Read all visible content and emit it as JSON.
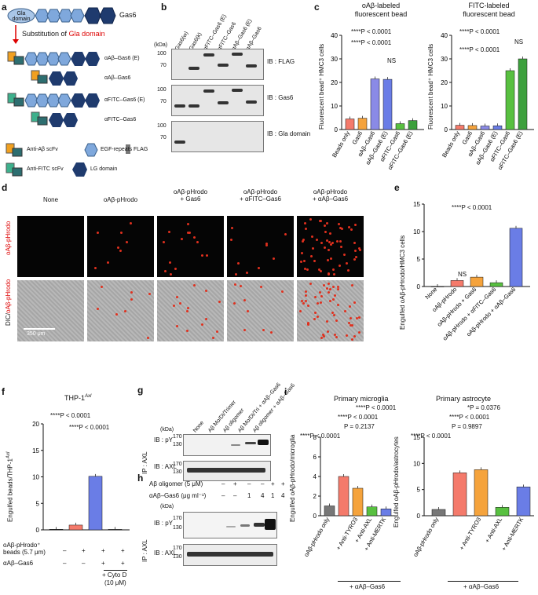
{
  "panels": {
    "a": {
      "label": "a",
      "gla_domain": "Gla domain",
      "gas6": "Gas6",
      "substitution_prefix": "Substitution of",
      "substitution_target": "Gla domain",
      "constructs": [
        "αAβ–Gas6 (E)",
        "αAβ–Gas6",
        "αFITC–Gas6 (E)",
        "αFITC–Gas6"
      ],
      "legend": {
        "anti_abeta": "Anti-Aβ scFv",
        "egf": "EGF-repeats",
        "flag": "FLAG",
        "anti_fitc": "Anti-FITC scFv",
        "lg": "LG domain"
      }
    },
    "b": {
      "label": "b",
      "lanes": [
        "Gas6(w)",
        "Gas6(k)",
        "αFITC–Gas6 (E)",
        "αFITC–Gas6",
        "αAβ–Gas6 (E)",
        "αAβ–Gas6"
      ],
      "kda": "(kDa)",
      "markers": [
        "100",
        "70"
      ],
      "ib": [
        "IB : FLAG",
        "IB : Gas6",
        "IB : Gla domain"
      ]
    },
    "c": {
      "label": "c",
      "ylabel": "Fluorescent bead⁺ HMC3 cells",
      "charts": [
        {
          "title1": "oAβ-labeled",
          "title2": "fluorescent bead",
          "stats": [
            "****P < 0.0001",
            "****P < 0.0001",
            "NS"
          ]
        },
        {
          "title1": "FITC-labeled",
          "title2": "fluorescent bead",
          "stats": [
            "****P < 0.0001",
            "****P < 0.0001",
            "NS"
          ]
        }
      ]
    },
    "d": {
      "label": "d",
      "columns": [
        "None",
        "oAβ-pHrodo",
        "oAβ-pHrodo\n+ Gas6",
        "oAβ-pHrodo\n+ αFITC–Gas6",
        "oAβ-pHrodo\n+ αAβ–Gas6"
      ],
      "row1": "oAβ-pHrodo",
      "row2_a": "DIC/",
      "row2_b": "oAβ-pHrodo",
      "scale": "350 μm"
    },
    "e": {
      "label": "e",
      "ylabel": "Engulfed oAβ-pHrodo/HMC3 cells",
      "stats": [
        "****P < 0.0001",
        "NS"
      ]
    },
    "f": {
      "label": "f",
      "title": "THP-1",
      "title_sup": "Axl",
      "ylabel": "Engulfed beads/THP-1",
      "ylabel_sup": "Axl",
      "stats": [
        "****P < 0.0001",
        "****P < 0.0001"
      ],
      "row1": "oAβ-pHrodo⁺ beads (5.7 μm)",
      "row2": "αAβ–Gas6",
      "row1_vals": [
        "–",
        "+",
        "+",
        "+"
      ],
      "row2_vals": [
        "–",
        "–",
        "+",
        "+"
      ],
      "cyto": "+ Cyto D",
      "cyto_conc": "(10 μM)"
    },
    "g": {
      "label": "g",
      "lanes": [
        "None",
        "Aβ Mo/Di/Trimer",
        "Aβ oligomer",
        "Aβ Mo/Di/Tri + αAβ–Gas6",
        "Aβ oligomer + αAβ–Gas6"
      ],
      "kda": "(kDa)",
      "markers_top": [
        "170",
        "130"
      ],
      "markers_bottom": [
        "170",
        "130"
      ],
      "ib_top": "IB : pY",
      "ib_bottom": "IB : AXL",
      "ip": "IP : AXL"
    },
    "h": {
      "label": "h",
      "row1_label": "Aβ oligomer (5 μM)",
      "row1_vals": [
        "–",
        "+",
        "–",
        "–",
        "+",
        "+"
      ],
      "row2_label": "αAβ–Gas6 (μg ml⁻¹)",
      "row2_vals": [
        "–",
        "–",
        "1",
        "4",
        "1",
        "4"
      ],
      "kda": "(kDa)",
      "markers_top": [
        "170",
        "130"
      ],
      "markers_bottom": [
        "170",
        "130"
      ],
      "ib_top": "IB : pY",
      "ib_bottom": "IB : AXL",
      "ip": "IP : AXL"
    },
    "i": {
      "label": "i",
      "charts": [
        {
          "title": "Primary microglia",
          "ylabel": "Engulfed oAβ-pHrodo/microglia",
          "stats": [
            "****P < 0.0001",
            "****P < 0.0001",
            "P = 0.2137",
            "****P < 0.0001"
          ]
        },
        {
          "title": "Primary astrocyte",
          "ylabel": "Engulfed oAβ-pHrodo/astrocytes",
          "stats": [
            "*P = 0.0376",
            "****P < 0.0001",
            "P = 0.9897",
            "****P < 0.0001"
          ]
        }
      ],
      "footer": "+ αAβ–Gas6"
    }
  },
  "chart_data": [
    {
      "type": "bar",
      "panel": "c-left",
      "title": "oAβ-labeled fluorescent bead",
      "categories": [
        "Beads only",
        "Gas6",
        "αAβ–Gas6",
        "αAβ–Gas6 (E)",
        "αFITC–Gas6",
        "αFITC–Gas6 (E)"
      ],
      "values": [
        4.5,
        4.8,
        21.5,
        21.3,
        2.5,
        3.8
      ],
      "colors": [
        "#f47a6b",
        "#f5a33c",
        "#8a8ae6",
        "#6a7de6",
        "#58c040",
        "#3da03d"
      ],
      "ylim": [
        0,
        40
      ],
      "yticks": [
        "0",
        "10",
        "20",
        "30",
        "40"
      ]
    },
    {
      "type": "bar",
      "panel": "c-right",
      "title": "FITC-labeled fluorescent bead",
      "categories": [
        "Beads only",
        "Gas6",
        "αAβ–Gas6",
        "αAβ–Gas6 (E)",
        "αFITC–Gas6",
        "αFITC–Gas6 (E)"
      ],
      "values": [
        1.8,
        1.7,
        1.5,
        1.6,
        25,
        30
      ],
      "colors": [
        "#f47a6b",
        "#f5a33c",
        "#8a8ae6",
        "#6a7de6",
        "#58c040",
        "#3da03d"
      ],
      "ylim": [
        0,
        40
      ],
      "yticks": [
        "0",
        "10",
        "20",
        "30",
        "40"
      ]
    },
    {
      "type": "bar",
      "panel": "e",
      "categories": [
        "None",
        "oAβ-pHrodo",
        "oAβ-pHrodo + Gas6",
        "oAβ-pHrodo + αFITC–Gas6",
        "oAβ-pHrodo + αAβ–Gas6"
      ],
      "values": [
        0,
        1.1,
        1.7,
        0.7,
        10.6
      ],
      "colors": [
        "#222222",
        "#f47a6b",
        "#f5a33c",
        "#58c040",
        "#6a7de6"
      ],
      "ylim": [
        0,
        15
      ],
      "yticks": [
        "0",
        "5",
        "10",
        "15"
      ]
    },
    {
      "type": "bar",
      "panel": "f",
      "categories": [
        "–/–",
        "+/–",
        "+/+",
        "+/+ Cyto D"
      ],
      "values": [
        0.1,
        0.9,
        10.1,
        0.1
      ],
      "colors": [
        "#222222",
        "#f47a6b",
        "#6a7de6",
        "#888888"
      ],
      "ylim": [
        0,
        20
      ],
      "yticks": [
        "0",
        "5",
        "10",
        "15",
        "20"
      ]
    },
    {
      "type": "bar",
      "panel": "i-left",
      "categories": [
        "oAβ-pHrodo only",
        "",
        "+ Anti-TYRO3",
        "+ Anti-AXL",
        "+ Anti-MERTK"
      ],
      "values": [
        1.0,
        4.0,
        2.8,
        0.9,
        0.7
      ],
      "colors": [
        "#777777",
        "#f47a6b",
        "#f5a33c",
        "#58c040",
        "#6a7de6"
      ],
      "ylim": [
        0,
        8
      ],
      "yticks": [
        "0",
        "2",
        "4",
        "6",
        "8"
      ]
    },
    {
      "type": "bar",
      "panel": "i-right",
      "categories": [
        "oAβ-pHrodo only",
        "",
        "+ Anti-TYRO3",
        "+ Anti-AXL",
        "+ Anti-MERTK"
      ],
      "values": [
        1.2,
        8.2,
        8.8,
        1.6,
        5.5
      ],
      "colors": [
        "#777777",
        "#f47a6b",
        "#f5a33c",
        "#58c040",
        "#6a7de6"
      ],
      "ylim": [
        0,
        15
      ],
      "yticks": [
        "0",
        "5",
        "10",
        "15"
      ]
    }
  ]
}
